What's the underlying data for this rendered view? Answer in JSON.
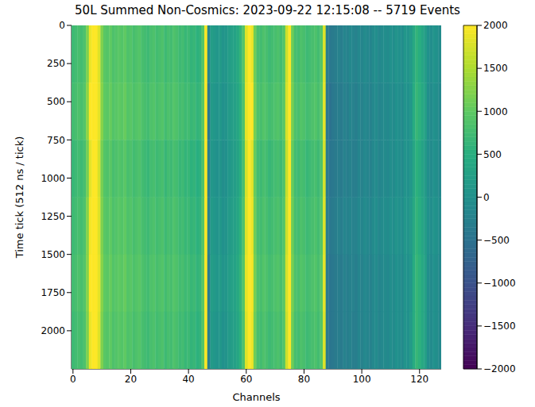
{
  "chart_data": {
    "type": "heatmap",
    "title": "50L Summed Non-Cosmics: 2023-09-22 12:15:08 -- 5719 Events",
    "x_label": "Channels",
    "y_label": "Time tick (512 ns / tick)",
    "xlim": [
      -0.5,
      127.5
    ],
    "xticks": [
      0,
      20,
      40,
      60,
      80,
      100,
      120
    ],
    "ylim": [
      0,
      2250
    ],
    "yticks": [
      0,
      250,
      500,
      750,
      1000,
      1250,
      1500,
      1750,
      2000
    ],
    "channels": [
      0,
      1,
      2,
      3,
      4,
      5,
      6,
      7,
      8,
      9,
      10,
      11,
      12,
      13,
      14,
      15,
      16,
      17,
      18,
      19,
      20,
      21,
      22,
      23,
      24,
      25,
      26,
      27,
      28,
      29,
      30,
      31,
      32,
      33,
      34,
      35,
      36,
      37,
      38,
      39,
      40,
      41,
      42,
      43,
      44,
      45,
      46,
      47,
      48,
      49,
      50,
      51,
      52,
      53,
      54,
      55,
      56,
      57,
      58,
      59,
      60,
      61,
      62,
      63,
      64,
      65,
      66,
      67,
      68,
      69,
      70,
      71,
      72,
      73,
      74,
      75,
      76,
      77,
      78,
      79,
      80,
      81,
      82,
      83,
      84,
      85,
      86,
      87,
      88,
      89,
      90,
      91,
      92,
      93,
      94,
      95,
      96,
      97,
      98,
      99,
      100,
      101,
      102,
      103,
      104,
      105,
      106,
      107,
      108,
      109,
      110,
      111,
      112,
      113,
      114,
      115,
      116,
      117,
      118,
      119,
      120,
      121,
      122,
      123,
      124,
      125,
      126,
      127
    ],
    "y_edges": [
      0,
      375,
      750,
      1125,
      1500,
      1875,
      2250
    ],
    "cells": [
      [
        700,
        750,
        800,
        750,
        850,
        1200,
        1900,
        2000,
        2000,
        1800,
        1200,
        950,
        900,
        1000,
        850,
        900,
        950,
        900,
        1000,
        850,
        900,
        800,
        850,
        900,
        800,
        750,
        700,
        800,
        850,
        750,
        800,
        850,
        700,
        800,
        750,
        850,
        800,
        700,
        750,
        650,
        700,
        600,
        650,
        550,
        600,
        900,
        2000,
        -200,
        200,
        150,
        100,
        150,
        50,
        100,
        200,
        250,
        300,
        400,
        600,
        900,
        1800,
        2000,
        1900,
        1100,
        800,
        750,
        850,
        800,
        700,
        750,
        800,
        850,
        750,
        900,
        1700,
        2000,
        1100,
        800,
        750,
        850,
        800,
        700,
        750,
        800,
        850,
        750,
        900,
        1800,
        -300,
        -400,
        -350,
        -300,
        -250,
        -300,
        -200,
        -250,
        -150,
        -200,
        -250,
        -150,
        -200,
        -100,
        -150,
        -200,
        -100,
        -50,
        -150,
        -100,
        -50,
        -100,
        0,
        -50,
        50,
        0,
        -50,
        100,
        50,
        150,
        400,
        600,
        500,
        350,
        200,
        0,
        -50,
        50,
        0,
        -100
      ],
      [
        750,
        800,
        850,
        800,
        900,
        1300,
        2000,
        2000,
        2000,
        1850,
        1250,
        1000,
        950,
        1050,
        900,
        950,
        1000,
        950,
        1050,
        900,
        950,
        850,
        900,
        950,
        850,
        800,
        750,
        850,
        900,
        800,
        850,
        900,
        750,
        850,
        800,
        900,
        850,
        750,
        800,
        700,
        750,
        650,
        700,
        600,
        650,
        950,
        2000,
        -400,
        150,
        100,
        50,
        100,
        0,
        50,
        150,
        200,
        250,
        350,
        550,
        850,
        1850,
        2000,
        2000,
        1150,
        850,
        800,
        900,
        850,
        750,
        800,
        850,
        900,
        800,
        950,
        1750,
        2000,
        1150,
        850,
        800,
        900,
        850,
        750,
        800,
        850,
        900,
        800,
        950,
        1850,
        -400,
        -500,
        -400,
        -350,
        -300,
        -350,
        -250,
        -300,
        -200,
        -250,
        -300,
        -200,
        -250,
        -150,
        -200,
        -250,
        -150,
        -100,
        -200,
        -150,
        -100,
        -150,
        -50,
        -100,
        0,
        -50,
        -100,
        50,
        0,
        100,
        450,
        650,
        550,
        400,
        250,
        -50,
        -100,
        0,
        -50,
        -150
      ],
      [
        650,
        700,
        750,
        700,
        800,
        1150,
        1850,
        2000,
        2000,
        1750,
        1150,
        900,
        850,
        950,
        800,
        850,
        900,
        850,
        950,
        800,
        850,
        750,
        800,
        850,
        750,
        700,
        650,
        750,
        800,
        700,
        750,
        800,
        650,
        750,
        700,
        800,
        750,
        650,
        700,
        600,
        650,
        550,
        600,
        500,
        550,
        850,
        2000,
        -300,
        100,
        50,
        0,
        50,
        -50,
        0,
        100,
        150,
        200,
        300,
        500,
        800,
        1750,
        2000,
        1850,
        1050,
        750,
        700,
        800,
        750,
        650,
        700,
        750,
        800,
        700,
        850,
        1650,
        2000,
        1050,
        750,
        700,
        800,
        750,
        650,
        700,
        750,
        800,
        700,
        850,
        1750,
        -350,
        -450,
        -400,
        -350,
        -300,
        -350,
        -250,
        -300,
        -250,
        -300,
        -300,
        -200,
        -250,
        -150,
        -200,
        -250,
        -150,
        -100,
        -200,
        -150,
        -100,
        -150,
        -50,
        -100,
        0,
        -50,
        -100,
        50,
        0,
        100,
        350,
        550,
        450,
        300,
        150,
        -50,
        -100,
        0,
        -50,
        -150
      ],
      [
        700,
        750,
        800,
        750,
        850,
        1250,
        1950,
        2000,
        2000,
        1800,
        1200,
        950,
        900,
        1000,
        850,
        900,
        950,
        900,
        1000,
        850,
        900,
        800,
        850,
        900,
        800,
        750,
        700,
        800,
        850,
        750,
        800,
        850,
        700,
        800,
        750,
        850,
        800,
        700,
        750,
        650,
        700,
        600,
        650,
        550,
        600,
        900,
        2000,
        -250,
        150,
        100,
        50,
        100,
        0,
        50,
        150,
        200,
        250,
        350,
        550,
        850,
        1800,
        2000,
        1900,
        1100,
        800,
        750,
        850,
        800,
        700,
        750,
        800,
        850,
        750,
        900,
        1700,
        2000,
        1100,
        800,
        750,
        850,
        800,
        700,
        750,
        800,
        850,
        750,
        900,
        1800,
        -300,
        -400,
        -350,
        -300,
        -250,
        -300,
        -200,
        -250,
        -200,
        -250,
        -250,
        -150,
        -200,
        -100,
        -150,
        -200,
        -100,
        -50,
        -150,
        -100,
        -50,
        -100,
        0,
        -50,
        50,
        0,
        -50,
        100,
        50,
        150,
        400,
        600,
        500,
        350,
        200,
        0,
        -50,
        50,
        0,
        -100
      ],
      [
        750,
        800,
        850,
        800,
        900,
        1250,
        2000,
        2000,
        2000,
        1850,
        1250,
        1000,
        950,
        1050,
        900,
        950,
        1000,
        950,
        1050,
        900,
        950,
        850,
        900,
        950,
        850,
        800,
        750,
        850,
        900,
        800,
        850,
        900,
        750,
        850,
        800,
        900,
        850,
        750,
        800,
        700,
        750,
        650,
        700,
        600,
        650,
        950,
        2000,
        -350,
        200,
        150,
        100,
        150,
        50,
        100,
        200,
        250,
        300,
        400,
        600,
        900,
        1850,
        2000,
        1950,
        1150,
        850,
        800,
        900,
        850,
        750,
        800,
        850,
        900,
        800,
        950,
        1750,
        2000,
        1150,
        850,
        800,
        900,
        850,
        750,
        800,
        850,
        900,
        800,
        950,
        1850,
        -350,
        -450,
        -400,
        -350,
        -300,
        -350,
        -250,
        -300,
        -250,
        -250,
        -300,
        -200,
        -250,
        -150,
        -200,
        -250,
        -150,
        -100,
        -200,
        -150,
        -100,
        -150,
        -50,
        -100,
        0,
        -50,
        -100,
        50,
        0,
        100,
        450,
        650,
        550,
        400,
        250,
        -50,
        -100,
        0,
        -50,
        -150
      ],
      [
        700,
        750,
        800,
        750,
        850,
        1200,
        1900,
        2000,
        2000,
        1800,
        1200,
        950,
        900,
        1000,
        850,
        900,
        950,
        900,
        1000,
        850,
        900,
        800,
        850,
        900,
        800,
        750,
        700,
        800,
        850,
        750,
        800,
        850,
        700,
        800,
        750,
        850,
        800,
        700,
        750,
        650,
        700,
        600,
        650,
        550,
        600,
        900,
        2000,
        -300,
        150,
        100,
        50,
        100,
        0,
        50,
        150,
        200,
        250,
        350,
        550,
        850,
        1800,
        2000,
        1900,
        1100,
        800,
        750,
        850,
        800,
        700,
        750,
        800,
        850,
        750,
        900,
        1700,
        2000,
        1100,
        800,
        750,
        850,
        800,
        700,
        750,
        800,
        850,
        750,
        900,
        1800,
        -350,
        -450,
        -400,
        -350,
        -300,
        -350,
        -250,
        -300,
        -250,
        -300,
        -300,
        -200,
        -250,
        -150,
        -200,
        -250,
        -150,
        -100,
        -200,
        -150,
        -100,
        -150,
        -50,
        -100,
        0,
        -50,
        -100,
        50,
        0,
        150,
        450,
        650,
        550,
        400,
        250,
        -50,
        -100,
        0,
        -50,
        -150
      ]
    ],
    "colorbar_lim": [
      -2000,
      2000
    ],
    "colorbar_ticks": [
      {
        "value": -2000,
        "label": "−2000"
      },
      {
        "value": -1500,
        "label": "−1500"
      },
      {
        "value": -1000,
        "label": "−1000"
      },
      {
        "value": -500,
        "label": "−500"
      },
      0,
      500,
      1000,
      1500,
      2000
    ]
  }
}
